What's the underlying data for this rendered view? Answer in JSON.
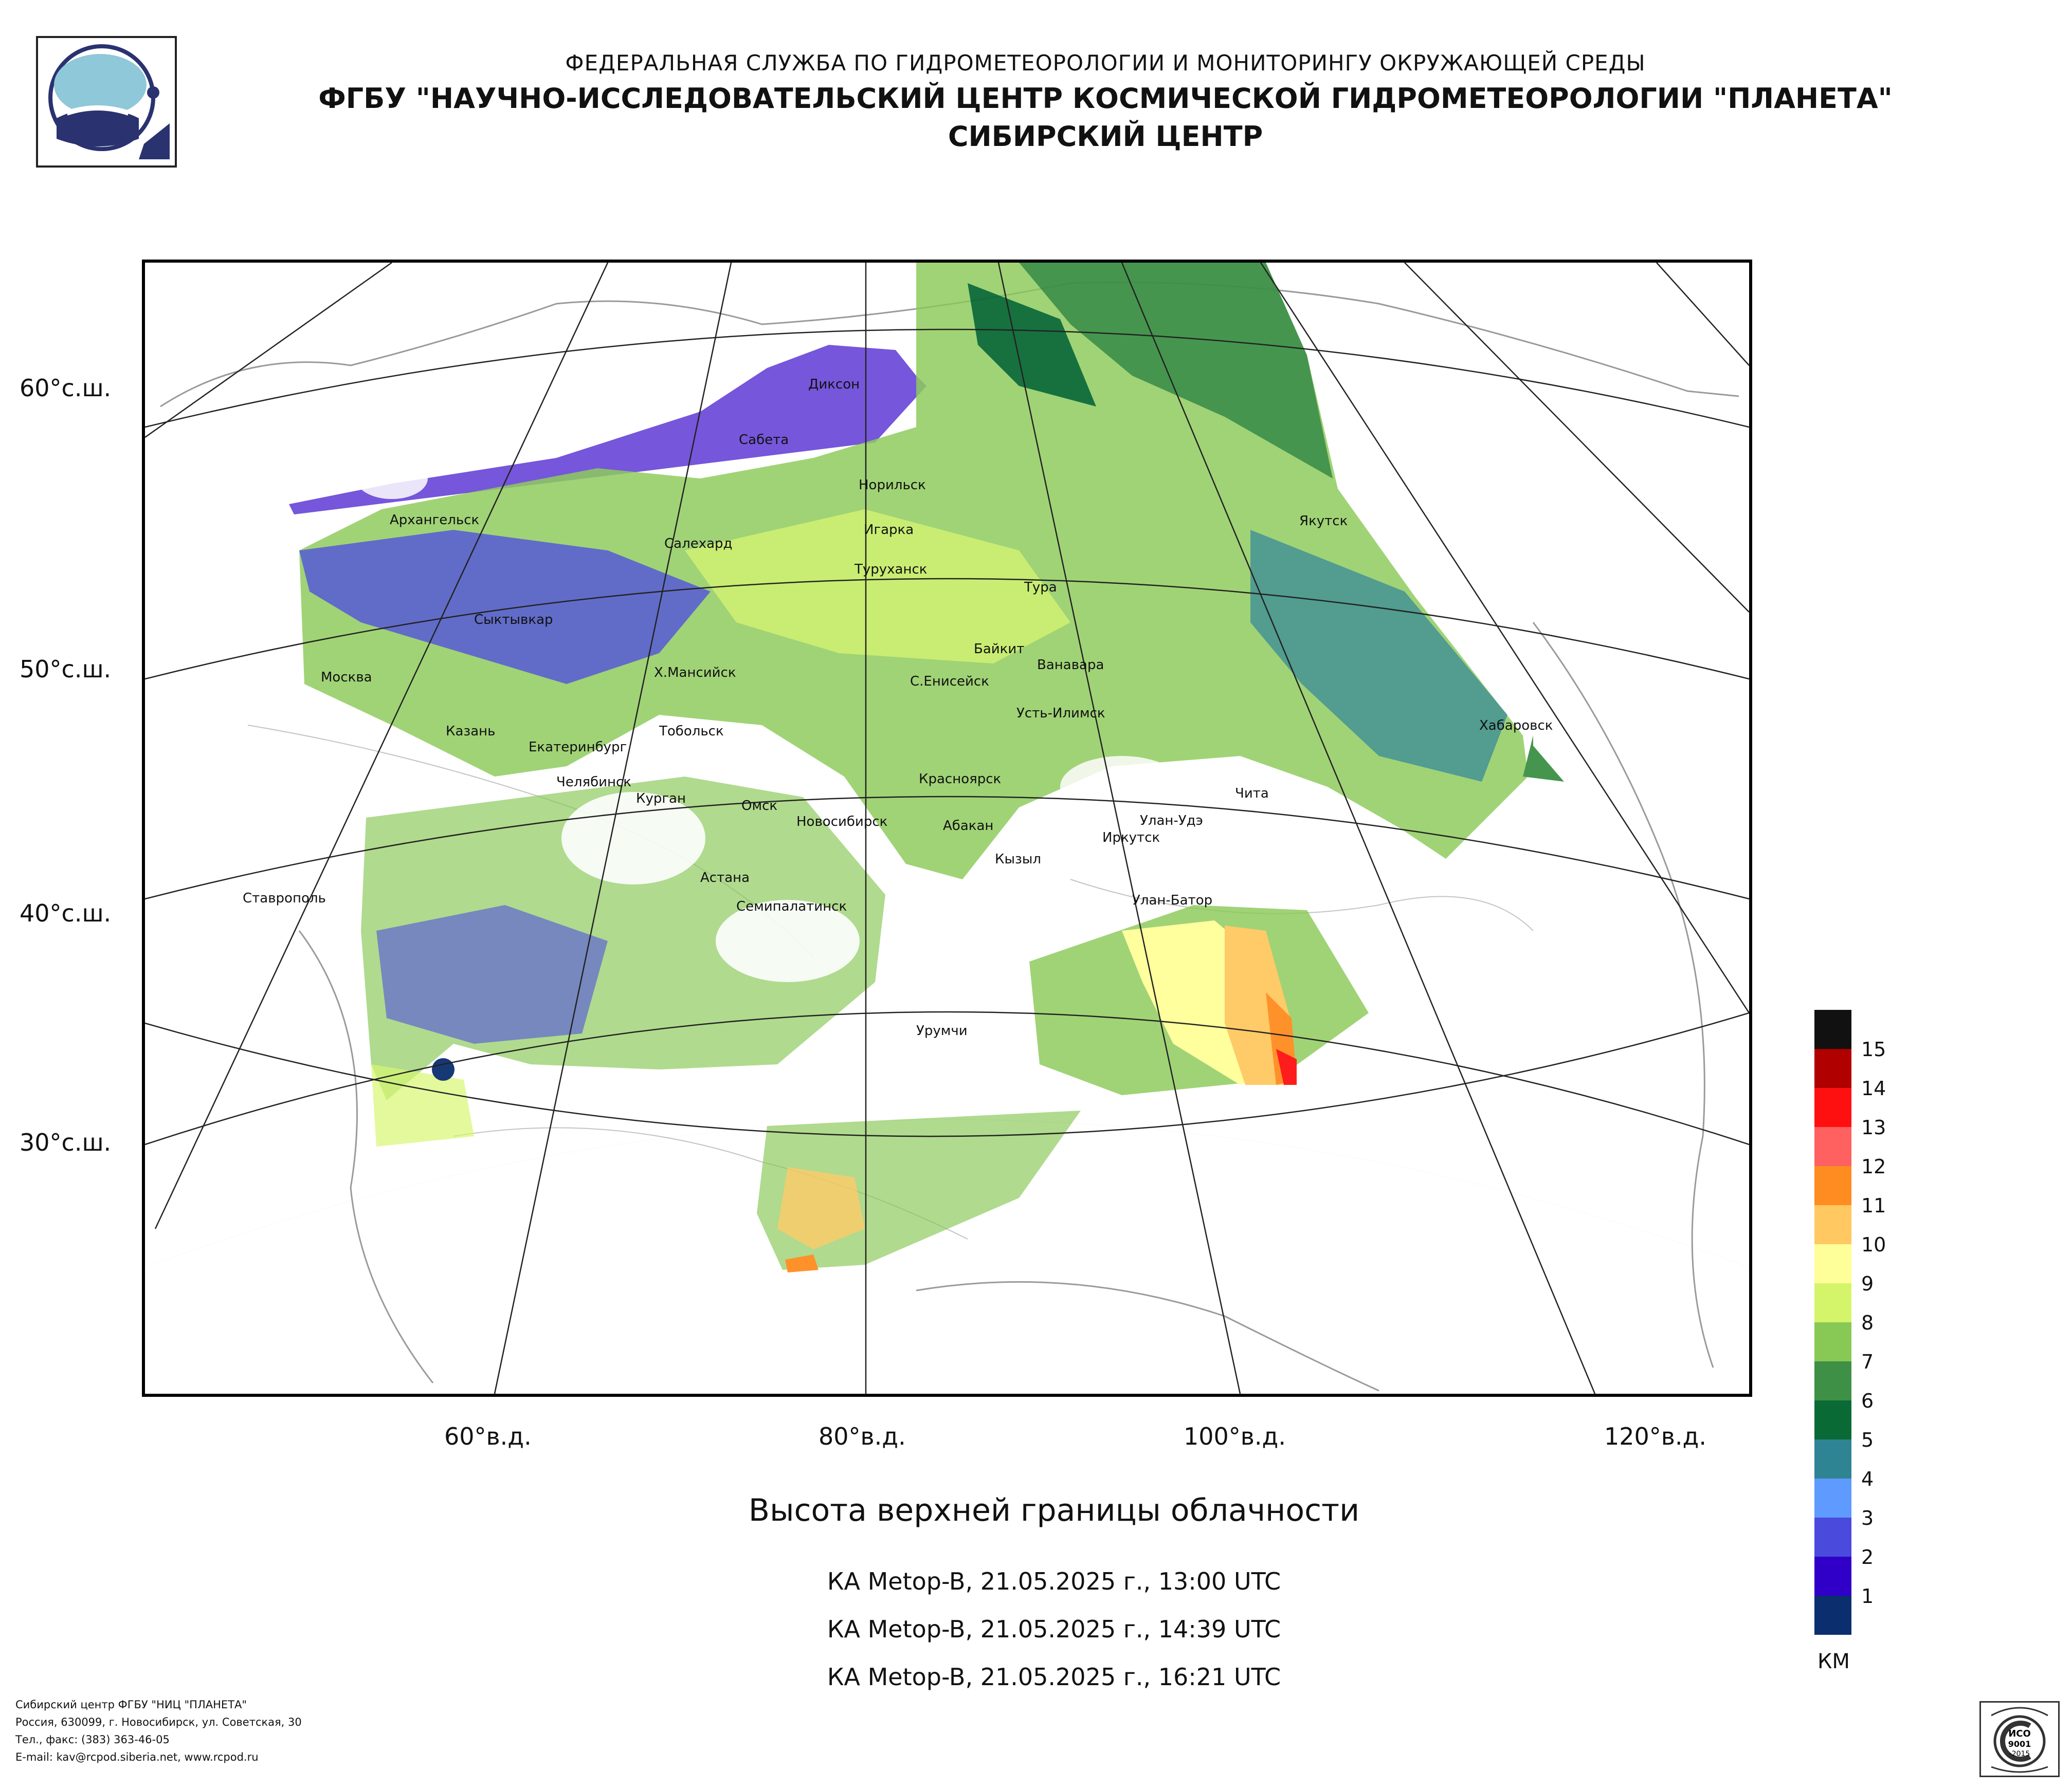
{
  "header": {
    "line1": "ФЕДЕРАЛЬНАЯ СЛУЖБА ПО ГИДРОМЕТЕОРОЛОГИИ И МОНИТОРИНГУ ОКРУЖАЮЩЕЙ СРЕДЫ",
    "line2": "ФГБУ \"НАУЧНО-ИССЛЕДОВАТЕЛЬСКИЙ ЦЕНТР КОСМИЧЕСКОЙ ГИДРОМЕТЕОРОЛОГИИ \"ПЛАНЕТА\"",
    "line3": "СИБИРСКИЙ ЦЕНТР"
  },
  "map": {
    "lat_labels": [
      "60°с.ш.",
      "50°с.ш.",
      "40°с.ш.",
      "30°с.ш."
    ],
    "lon_labels": [
      "60°в.д.",
      "80°в.д.",
      "100°в.д.",
      "120°в.д."
    ],
    "cities": [
      "Диксон",
      "Сабета",
      "Норильск",
      "Архангельск",
      "Салехард",
      "Игарка",
      "Якутск",
      "Туруханск",
      "Тура",
      "Сыктывкар",
      "Байкит",
      "Ванавара",
      "Москва",
      "Х.Мансийск",
      "С.Енисейск",
      "Усть-Илимск",
      "Хабаровск",
      "Казань",
      "Тобольск",
      "Екатеринбург",
      "Челябинск",
      "Курган",
      "Омск",
      "Новосибирск",
      "Красноярск",
      "Чита",
      "Абакан",
      "Улан-Удэ",
      "Иркутск",
      "Кызыл",
      "Астана",
      "Ставрополь",
      "Семипалатинск",
      "Улан-Батор",
      "Урумчи"
    ]
  },
  "title": "Высота верхней границы облачности",
  "passes": [
    "КА Metop-B, 21.05.2025 г., 13:00 UTC",
    "КА Metop-B, 21.05.2025 г., 14:39 UTC",
    "КА Metop-B, 21.05.2025 г., 16:21 UTC"
  ],
  "legend": {
    "units": "КМ",
    "values": [
      "15",
      "14",
      "13",
      "12",
      "11",
      "10",
      "9",
      "8",
      "7",
      "6",
      "5",
      "4",
      "3",
      "2",
      "1"
    ],
    "colors": [
      "#111111",
      "#b00000",
      "#ff1010",
      "#ff6060",
      "#ff8c20",
      "#ffc860",
      "#ffff99",
      "#d4f56a",
      "#88c855",
      "#3d9045",
      "#0a6a35",
      "#2f8494",
      "#5f9aff",
      "#4a4adc",
      "#3000c8",
      "#0a2e6e"
    ]
  },
  "footer": {
    "line1": "Сибирский центр ФГБУ \"НИЦ \"ПЛАНЕТА\"",
    "line2": "Россия, 630099, г. Новосибирск, ул. Советская, 30",
    "line3": "Тел., факс: (383) 363-46-05",
    "line4": "E-mail: kav@rcpod.siberia.net, www.rcpod.ru"
  },
  "iso_badge": {
    "top": "ДОБРОСОВЕСТНЫЙ",
    "mark": "ИСО 9001 -2015",
    "bottom": "ПОСТАВЩИК"
  }
}
